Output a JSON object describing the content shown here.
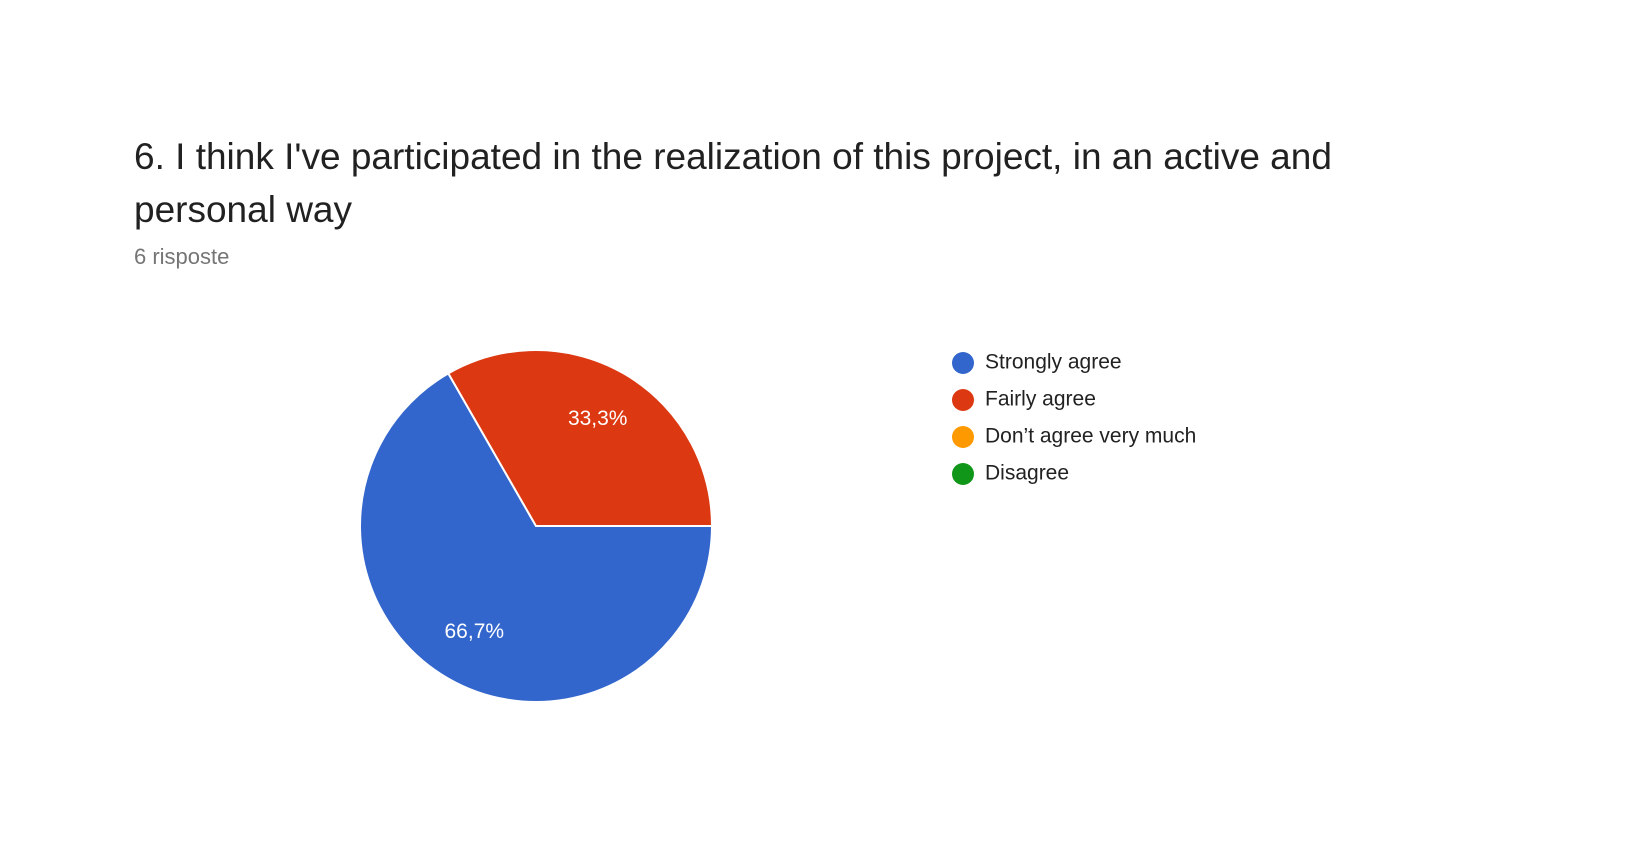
{
  "chart_data": {
    "type": "pie",
    "title": "6. I think I've participated in the realization of this project, in an active and personal way",
    "subtitle": "6 risposte",
    "categories": [
      "Strongly agree",
      "Fairly agree",
      "Don’t agree very much",
      "Disagree"
    ],
    "values": [
      66.7,
      33.3,
      0,
      0
    ],
    "value_labels": [
      "66,7%",
      "33,3%",
      null,
      null
    ],
    "colors": [
      "#3366cc",
      "#dc3912",
      "#ff9900",
      "#109618"
    ],
    "legend": "right"
  }
}
